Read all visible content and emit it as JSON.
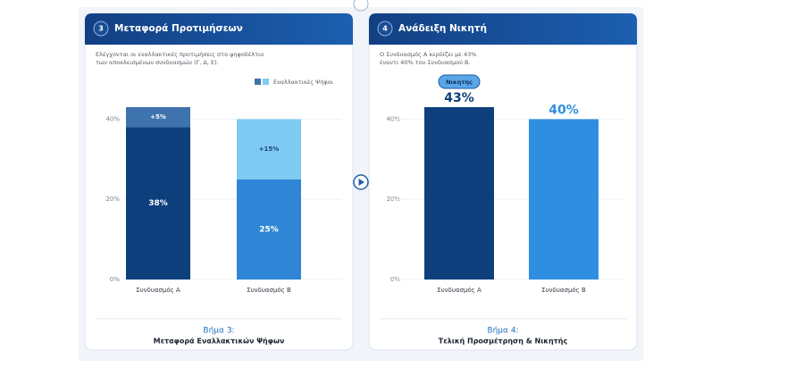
{
  "chart_data": [
    {
      "type": "stacked-bar",
      "badge": "3",
      "title": "Μεταφορά Προτιμήσεων",
      "subtitle": [
        "Ελέγχονται οι εναλλακτικές προτιμήσεις στο ψηφοδέλτιο",
        "των αποκλεισμένων συνδυασμών (Γ, Δ, Ε)."
      ],
      "categories": [
        "Συνδυασμός Α",
        "Συνδυασμός Β"
      ],
      "series": [
        {
          "colors": [
            "#0d3f7c",
            "#2f86d6"
          ],
          "values": [
            38,
            25
          ],
          "value_labels": [
            "38%",
            "25%"
          ]
        },
        {
          "name": "Εναλλακτικές Ψήφοι",
          "colors": [
            "#3f73ad",
            "#7fcaf2"
          ],
          "values": [
            5,
            15
          ],
          "value_labels": [
            "+5%",
            "+15%"
          ]
        }
      ],
      "ylim": [
        0,
        45
      ],
      "yticks": [
        {
          "value": 0,
          "label": "0%"
        },
        {
          "value": 20,
          "label": "20%"
        },
        {
          "value": 40,
          "label": "40%"
        }
      ],
      "grid": true,
      "legend": "top-right",
      "step_label": "Βήμα 3:",
      "step_title": "Μεταφορά Εναλλακτικών Ψήφων"
    },
    {
      "type": "bar",
      "badge": "4",
      "title": "Ανάδειξη Νικητή",
      "subtitle": [
        "Ο Συνδυασμός Α κερδίζει με 43%",
        "έναντι 40% του Συνδυασμού Β."
      ],
      "categories": [
        "Συνδυασμός Α",
        "Συνδυασμός Β"
      ],
      "values": [
        43,
        40
      ],
      "value_labels": [
        "43%",
        "40%"
      ],
      "colors": [
        "#0d3f7c",
        "#2f8ee0"
      ],
      "winner_label": "Νικητής",
      "ylim": [
        0,
        45
      ],
      "yticks": [
        {
          "value": 0,
          "label": "0%"
        },
        {
          "value": 20,
          "label": "20%"
        },
        {
          "value": 40,
          "label": "40%"
        }
      ],
      "grid": true,
      "step_label": "Βήμα 4:",
      "step_title": "Τελική Προσμέτρηση & Νικητής"
    }
  ]
}
